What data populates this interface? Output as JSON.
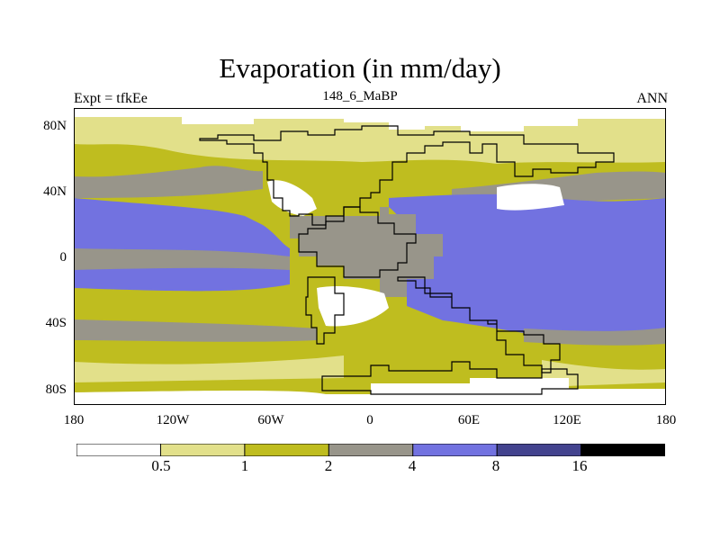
{
  "header": {
    "title": "Evaporation (in mm/day)",
    "left": "Expt = tfkEe",
    "center": "148_6_MaBP",
    "right": "ANN"
  },
  "axes": {
    "y_ticks": [
      "80N",
      "40N",
      "0",
      "40S",
      "80S"
    ],
    "x_ticks": [
      "180",
      "120W",
      "60W",
      "0",
      "60E",
      "120E",
      "180"
    ]
  },
  "colorbar": {
    "labels": [
      "0.5",
      "1",
      "2",
      "4",
      "8",
      "16"
    ],
    "colors": [
      "#ffffff",
      "#e2e08a",
      "#bfbd1f",
      "#98958a",
      "#7272e0",
      "#43438e",
      "#000000"
    ]
  }
}
